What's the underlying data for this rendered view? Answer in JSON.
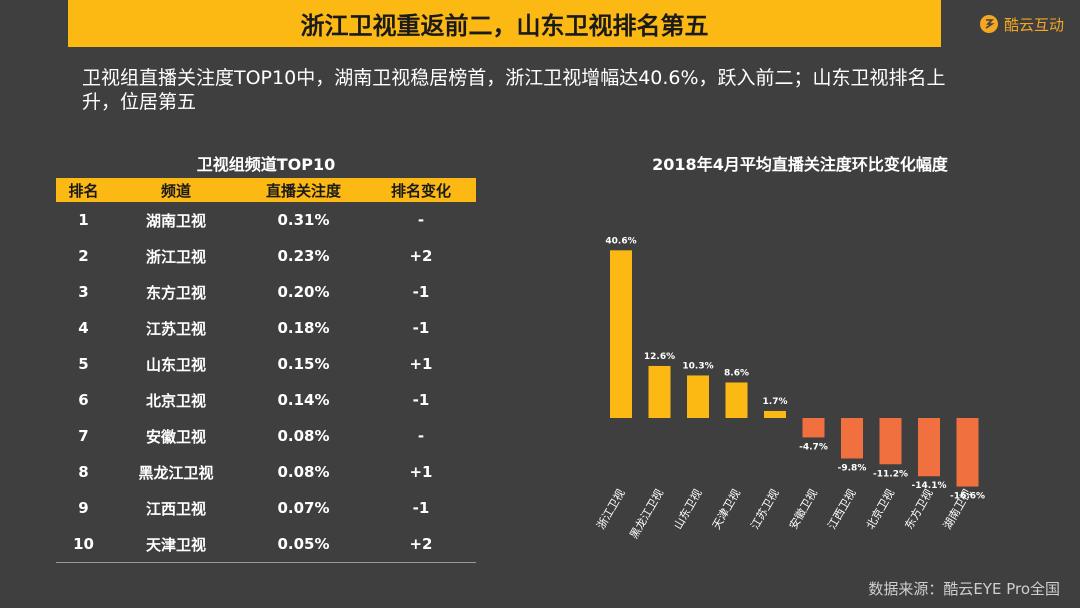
{
  "header": {
    "title": "浙江卫视重返前二，山东卫视排名第五",
    "brand": "酷云互动",
    "brand_color": "#f5a623",
    "accent": "#fdb913"
  },
  "summary": "卫视组直播关注度TOP10中，湖南卫视稳居榜首，浙江卫视增幅达40.6%，跃入前二；山东卫视排名上升，位居第五",
  "table": {
    "title": "卫视组频道TOP10",
    "headers": [
      "排名",
      "频道",
      "直播关注度",
      "排名变化"
    ],
    "rows": [
      [
        "1",
        "湖南卫视",
        "0.31%",
        "-"
      ],
      [
        "2",
        "浙江卫视",
        "0.23%",
        "+2"
      ],
      [
        "3",
        "东方卫视",
        "0.20%",
        "-1"
      ],
      [
        "4",
        "江苏卫视",
        "0.18%",
        "-1"
      ],
      [
        "5",
        "山东卫视",
        "0.15%",
        "+1"
      ],
      [
        "6",
        "北京卫视",
        "0.14%",
        "-1"
      ],
      [
        "7",
        "安徽卫视",
        "0.08%",
        "-"
      ],
      [
        "8",
        "黑龙江卫视",
        "0.08%",
        "+1"
      ],
      [
        "9",
        "江西卫视",
        "0.07%",
        "-1"
      ],
      [
        "10",
        "天津卫视",
        "0.05%",
        "+2"
      ]
    ]
  },
  "chart_data": {
    "type": "bar",
    "title": "2018年4月平均直播关注度环比变化幅度",
    "categories": [
      "浙江卫视",
      "黑龙江卫视",
      "山东卫视",
      "天津卫视",
      "江苏卫视",
      "安徽卫视",
      "江西卫视",
      "北京卫视",
      "东方卫视",
      "湖南卫视"
    ],
    "values": [
      40.6,
      12.6,
      10.3,
      8.6,
      1.7,
      -4.7,
      -9.8,
      -11.2,
      -14.1,
      -16.6
    ],
    "labels": [
      "40.6%",
      "12.6%",
      "10.3%",
      "8.6%",
      "1.7%",
      "-4.7%",
      "-9.8%",
      "-11.2%",
      "-14.1%",
      "-16.6%"
    ],
    "unit": "%",
    "positive_color": "#fdb913",
    "negative_color": "#f07040",
    "xlabel": "",
    "ylabel": "",
    "ylim": [
      -17,
      41
    ]
  },
  "source": "数据来源：酷云EYE Pro全国"
}
